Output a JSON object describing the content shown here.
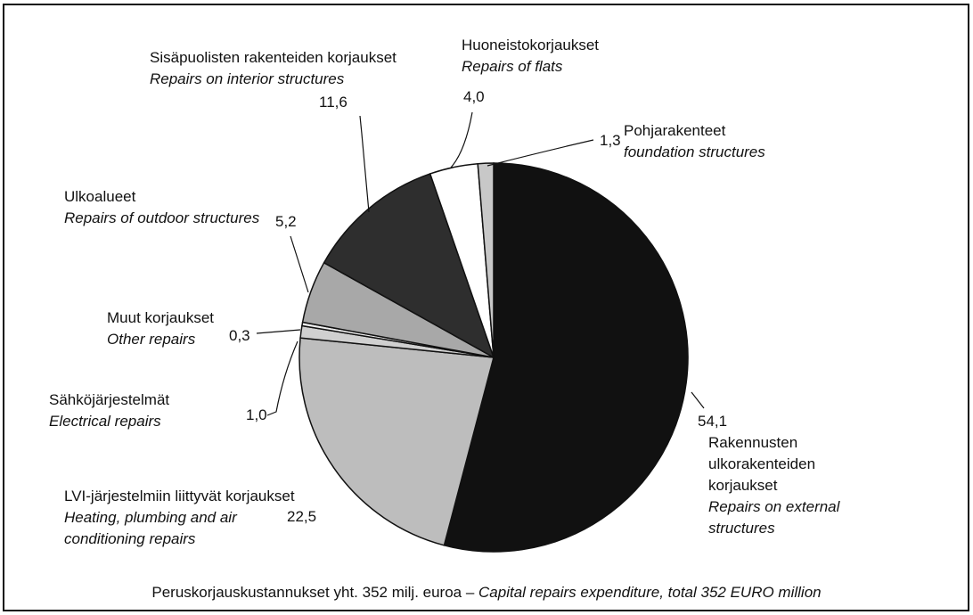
{
  "chart_data": {
    "type": "pie",
    "categories": [
      "Rakennusten ulkorakenteiden korjaukset",
      "LVI-järjestelmiin liittyvät korjaukset",
      "Sähköjärjestelmät",
      "Muut korjaukset",
      "Ulkoalueet",
      "Sisäpuolisten rakenteiden korjaukset",
      "Huoneistokorjaukset",
      "Pohjarakenteet"
    ],
    "categories_en": [
      "Repairs on external structures",
      "Heating, plumbing and air conditioning repairs",
      "Electrical repairs",
      "Other repairs",
      "Repairs of outdoor structures",
      "Repairs on interior structures",
      "Repairs of flats",
      "foundation structures"
    ],
    "values": [
      54.1,
      22.5,
      1.0,
      0.3,
      5.2,
      11.6,
      4.0,
      1.3
    ],
    "value_labels": [
      "54,1",
      "22,5",
      "1,0",
      "0,3",
      "5,2",
      "11,6",
      "4,0",
      "1,3"
    ],
    "colors": [
      "#111111",
      "#bdbdbd",
      "#d0d0d0",
      "#eeeeee",
      "#a8a8a8",
      "#2e2e2e",
      "#ffffff",
      "#c8c8c8"
    ],
    "caption": "Peruskorjauskustannukset yht. 352 milj. euroa – ",
    "caption_en": "Capital repairs expenditure, total 352 EURO million"
  }
}
